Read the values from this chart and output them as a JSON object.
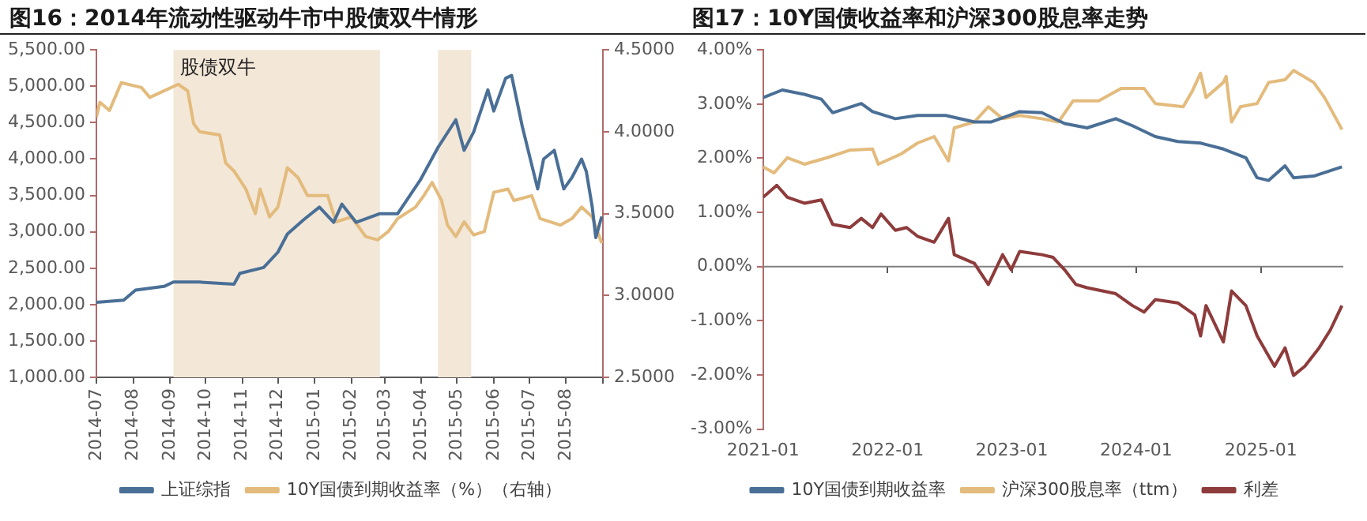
{
  "chart_data": [
    {
      "type": "line",
      "title": "图16：2014年流动性驱动牛市中股债双牛情形",
      "legend": "bottom",
      "grid": false,
      "marker": "none",
      "line_style": "solid",
      "xlim": [
        "2014-07-01",
        "2015-09-01"
      ],
      "xticks": [
        "2014-07",
        "2014-08",
        "2014-09",
        "2014-10",
        "2014-11",
        "2014-12",
        "2015-01",
        "2015-02",
        "2015-03",
        "2015-04",
        "2015-05",
        "2015-06",
        "2015-07",
        "2015-08",
        {
          "value": "2015-09",
          "label": null
        }
      ],
      "ylim": [
        1000,
        5500
      ],
      "yticks": [
        {
          "value": 1000,
          "label": "1,000.00"
        },
        {
          "value": 1500,
          "label": "1,500.00"
        },
        {
          "value": 2000,
          "label": "2,000.00"
        },
        {
          "value": 2500,
          "label": "2,500.00"
        },
        {
          "value": 3000,
          "label": "3,000.00"
        },
        {
          "value": 3500,
          "label": "3,500.00"
        },
        {
          "value": 4000,
          "label": "4,000.00"
        },
        {
          "value": 4500,
          "label": "4,500.00"
        },
        {
          "value": 5000,
          "label": "5,000.00"
        },
        {
          "value": 5500,
          "label": "5,500.00"
        }
      ],
      "y2lim": [
        2.5,
        4.5
      ],
      "y2ticks": [
        {
          "value": 2.5,
          "label": "2.5000"
        },
        {
          "value": 3,
          "label": "3.0000"
        },
        {
          "value": 3.5,
          "label": "3.5000"
        },
        {
          "value": 4,
          "label": "4.0000"
        },
        {
          "value": 4.5,
          "label": "4.5000"
        }
      ],
      "bands": [
        {
          "axis": "x",
          "from": "2014-09-04",
          "to": "2015-02-25",
          "label": "股债双牛",
          "color": "#f3e7d8"
        },
        {
          "axis": "x",
          "from": "2015-04-15",
          "to": "2015-05-13",
          "color": "#f3e7d8"
        }
      ],
      "series": [
        {
          "name": "上证综指",
          "color": "#4a6f96",
          "x": [
            "2014-07-01",
            "2014-07-24",
            "2014-08-03",
            "2014-08-27",
            "2014-09-04",
            "2014-09-26",
            "2014-10-25",
            "2014-10-30",
            "2014-11-19",
            "2014-12-01",
            "2014-12-09",
            "2014-12-23",
            "2015-01-05",
            "2015-01-17",
            "2015-01-24",
            "2015-02-05",
            "2015-02-25",
            "2015-03-12",
            "2015-03-31",
            "2015-04-15",
            "2015-04-30",
            "2015-05-07",
            "2015-05-15",
            "2015-05-27",
            "2015-06-01",
            "2015-06-11",
            "2015-06-16",
            "2015-06-25",
            "2015-07-03",
            "2015-07-08",
            "2015-07-13",
            "2015-07-22",
            "2015-07-30",
            "2015-08-06",
            "2015-08-14",
            "2015-08-18",
            "2015-08-23",
            "2015-08-26",
            "2015-08-31"
          ],
          "values": [
            2030,
            2060,
            2200,
            2250,
            2310,
            2310,
            2280,
            2430,
            2510,
            2720,
            2970,
            3170,
            3340,
            3130,
            3380,
            3130,
            3250,
            3250,
            3710,
            4160,
            4540,
            4120,
            4370,
            4950,
            4660,
            5110,
            5150,
            4450,
            3920,
            3590,
            4000,
            4120,
            3590,
            3750,
            4000,
            3830,
            3340,
            2920,
            3210
          ]
        },
        {
          "name": "10Y国债到期收益率（%）（右轴）",
          "axis": "y2",
          "color": "#e3bb7c",
          "x": [
            "2014-07-01",
            "2014-07-04",
            "2014-07-12",
            "2014-07-22",
            "2014-08-08",
            "2014-08-15",
            "2014-08-27",
            "2014-09-08",
            "2014-09-16",
            "2014-09-21",
            "2014-09-26",
            "2014-10-13",
            "2014-10-18",
            "2014-10-25",
            "2014-11-04",
            "2014-11-12",
            "2014-11-16",
            "2014-11-24",
            "2014-12-01",
            "2014-12-09",
            "2014-12-18",
            "2014-12-26",
            "2015-01-12",
            "2015-01-19",
            "2015-02-01",
            "2015-02-13",
            "2015-02-23",
            "2015-03-04",
            "2015-03-12",
            "2015-03-27",
            "2015-04-03",
            "2015-04-10",
            "2015-04-18",
            "2015-04-23",
            "2015-04-30",
            "2015-05-07",
            "2015-05-15",
            "2015-05-24",
            "2015-06-01",
            "2015-06-13",
            "2015-06-18",
            "2015-07-03",
            "2015-07-10",
            "2015-07-27",
            "2015-08-06",
            "2015-08-14",
            "2015-08-23",
            "2015-08-31"
          ],
          "values": [
            4.09,
            4.18,
            4.13,
            4.3,
            4.27,
            4.21,
            4.25,
            4.29,
            4.25,
            4.05,
            4.0,
            3.98,
            3.81,
            3.76,
            3.65,
            3.5,
            3.65,
            3.48,
            3.54,
            3.78,
            3.72,
            3.61,
            3.61,
            3.45,
            3.48,
            3.36,
            3.34,
            3.39,
            3.47,
            3.54,
            3.61,
            3.69,
            3.58,
            3.43,
            3.36,
            3.45,
            3.37,
            3.39,
            3.63,
            3.65,
            3.58,
            3.61,
            3.47,
            3.43,
            3.47,
            3.54,
            3.48,
            3.32
          ]
        }
      ]
    },
    {
      "type": "line",
      "title": "图17：10Y国债收益率和沪深300股息率走势",
      "legend": "bottom",
      "grid": false,
      "marker": "none",
      "line_style": "solid",
      "xlim": [
        "2021-01-01",
        "2025-08-31"
      ],
      "xticks": [
        "2021-01",
        "2022-01",
        "2023-01",
        "2024-01",
        "2025-01"
      ],
      "ylim": [
        -3,
        4
      ],
      "ref_lines": [
        {
          "axis": "y",
          "value": 0,
          "color": "#7f7f7f",
          "line_style": "solid"
        }
      ],
      "yticks": [
        {
          "value": -3,
          "label": "-3.00%"
        },
        {
          "value": -2,
          "label": "-2.00%"
        },
        {
          "value": -1,
          "label": "-1.00%"
        },
        {
          "value": 0,
          "label": "0.00%"
        },
        {
          "value": 1,
          "label": "1.00%"
        },
        {
          "value": 2,
          "label": "2.00%"
        },
        {
          "value": 3,
          "label": "3.00%"
        },
        {
          "value": 4,
          "label": "4.00%"
        }
      ],
      "series": [
        {
          "name": "10Y国债到期收益率",
          "color": "#4a6f96",
          "x": [
            "2021-01-01",
            "2021-02-26",
            "2021-05-02",
            "2021-06-21",
            "2021-07-24",
            "2021-10-16",
            "2021-11-18",
            "2022-01-24",
            "2022-03-30",
            "2022-06-21",
            "2022-09-13",
            "2022-11-02",
            "2023-01-24",
            "2023-03-30",
            "2023-06-05",
            "2023-08-10",
            "2023-11-02",
            "2023-12-21",
            "2024-02-26",
            "2024-05-02",
            "2024-07-08",
            "2024-09-13",
            "2024-11-18",
            "2024-12-21",
            "2025-01-24",
            "2025-03-13",
            "2025-04-07",
            "2025-06-05",
            "2025-08-27"
          ],
          "values": [
            3.12,
            3.26,
            3.18,
            3.09,
            2.84,
            3.01,
            2.86,
            2.73,
            2.79,
            2.79,
            2.67,
            2.67,
            2.86,
            2.84,
            2.64,
            2.56,
            2.73,
            2.6,
            2.4,
            2.31,
            2.28,
            2.17,
            2.01,
            1.64,
            1.59,
            1.86,
            1.64,
            1.67,
            1.84
          ]
        },
        {
          "name": "沪深300股息率（ttm）",
          "color": "#e3bb7c",
          "x": [
            "2021-01-01",
            "2021-02-02",
            "2021-03-13",
            "2021-05-02",
            "2021-07-08",
            "2021-09-13",
            "2021-11-18",
            "2021-12-05",
            "2022-02-10",
            "2022-03-30",
            "2022-05-18",
            "2022-06-29",
            "2022-07-16",
            "2022-09-13",
            "2022-10-24",
            "2022-12-05",
            "2023-01-24",
            "2023-03-30",
            "2023-05-18",
            "2023-06-30",
            "2023-09-13",
            "2023-11-18",
            "2024-01-24",
            "2024-02-26",
            "2024-05-18",
            "2024-06-13",
            "2024-07-08",
            "2024-07-24",
            "2024-09-13",
            "2024-09-21",
            "2024-10-07",
            "2024-11-02",
            "2024-12-21",
            "2025-01-24",
            "2025-03-13",
            "2025-04-07",
            "2025-06-05",
            "2025-07-07",
            "2025-08-27"
          ],
          "values": [
            1.84,
            1.73,
            2.01,
            1.89,
            2.01,
            2.15,
            2.17,
            1.89,
            2.08,
            2.28,
            2.4,
            1.95,
            2.56,
            2.67,
            2.95,
            2.73,
            2.79,
            2.73,
            2.67,
            3.06,
            3.06,
            3.29,
            3.29,
            3.01,
            2.95,
            3.23,
            3.57,
            3.12,
            3.4,
            3.51,
            2.67,
            2.95,
            3.01,
            3.4,
            3.45,
            3.62,
            3.4,
            3.12,
            2.53
          ]
        },
        {
          "name": "利差",
          "color": "#8e3b3b",
          "x": [
            "2021-01-01",
            "2021-02-10",
            "2021-03-13",
            "2021-05-02",
            "2021-06-21",
            "2021-07-24",
            "2021-09-13",
            "2021-10-16",
            "2021-11-18",
            "2021-12-13",
            "2022-01-24",
            "2022-02-26",
            "2022-03-30",
            "2022-05-18",
            "2022-06-29",
            "2022-07-16",
            "2022-09-13",
            "2022-10-24",
            "2022-12-05",
            "2022-12-30",
            "2023-01-24",
            "2023-03-30",
            "2023-05-02",
            "2023-06-05",
            "2023-07-08",
            "2023-08-10",
            "2023-11-02",
            "2023-12-21",
            "2024-01-24",
            "2024-02-26",
            "2024-05-02",
            "2024-06-21",
            "2024-07-08",
            "2024-07-24",
            "2024-09-13",
            "2024-10-07",
            "2024-11-18",
            "2024-12-21",
            "2025-02-10",
            "2025-03-13",
            "2025-04-07",
            "2025-05-10",
            "2025-06-21",
            "2025-07-24",
            "2025-08-27"
          ],
          "values": [
            1.28,
            1.5,
            1.28,
            1.17,
            1.23,
            0.78,
            0.72,
            0.89,
            0.72,
            0.97,
            0.67,
            0.72,
            0.56,
            0.45,
            0.89,
            0.22,
            0.06,
            -0.33,
            0.22,
            -0.06,
            0.28,
            0.22,
            0.17,
            -0.06,
            -0.33,
            -0.39,
            -0.5,
            -0.72,
            -0.84,
            -0.61,
            -0.67,
            -0.89,
            -1.28,
            -0.72,
            -1.39,
            -0.45,
            -0.72,
            -1.28,
            -1.84,
            -1.5,
            -2.01,
            -1.84,
            -1.5,
            -1.17,
            -0.72
          ]
        }
      ]
    }
  ]
}
